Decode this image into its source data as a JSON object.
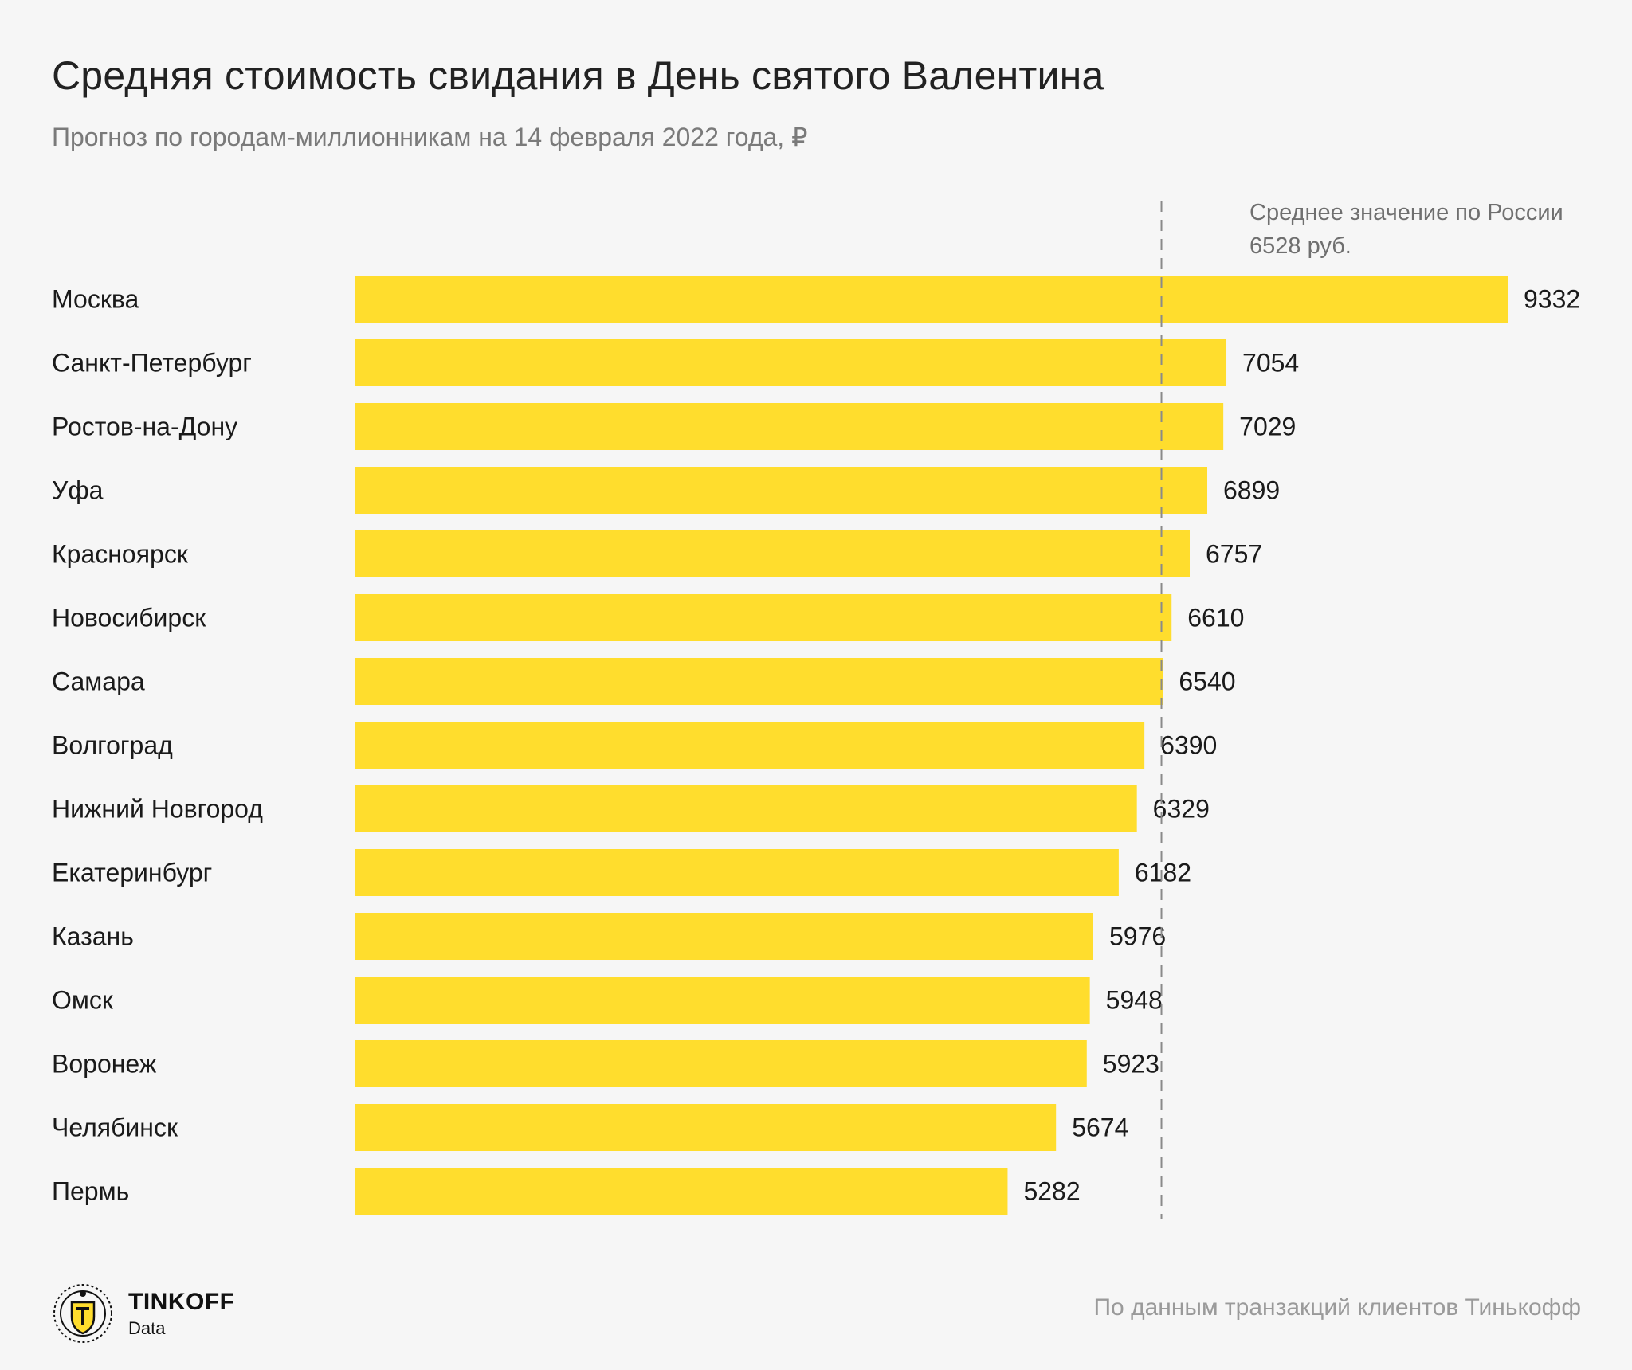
{
  "header": {
    "title": "Средняя стоимость свидания в День святого Валентина",
    "subtitle": "Прогноз по городам-миллионникам на 14 февраля 2022 года, ₽"
  },
  "chart_data": {
    "type": "bar",
    "orientation": "horizontal",
    "title": "Средняя стоимость свидания в День святого Валентина",
    "subtitle": "Прогноз по городам-миллионникам на 14 февраля 2022 года, ₽",
    "categories": [
      "Москва",
      "Санкт-Петербург",
      "Ростов-на-Дону",
      "Уфа",
      "Красноярск",
      "Новосибирск",
      "Самара",
      "Волгоград",
      "Нижний Новгород",
      "Екатеринбург",
      "Казань",
      "Омск",
      "Воронеж",
      "Челябинск",
      "Пермь"
    ],
    "values": [
      9332,
      7054,
      7029,
      6899,
      6757,
      6610,
      6540,
      6390,
      6329,
      6182,
      5976,
      5948,
      5923,
      5674,
      5282
    ],
    "xlim": [
      0,
      9332
    ],
    "grid": false,
    "bar_color": "#ffdd2d",
    "reference_line": {
      "value": 6528,
      "label_line1": "Среднее значение по России",
      "label_line2": "6528 руб."
    }
  },
  "footer": {
    "brand_name": "TINKOFF",
    "brand_sub": "Data",
    "logo_icon": "tinkoff-crest-icon",
    "source": "По данным транзакций клиентов Тинькофф"
  },
  "colors": {
    "background": "#f6f6f6",
    "bar": "#ffdd2d",
    "text": "#1a1a1a",
    "muted": "#7a7a7a"
  }
}
